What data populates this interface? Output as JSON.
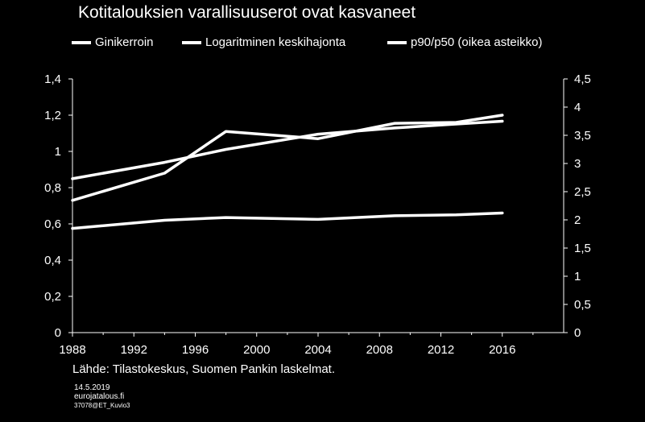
{
  "title": "Kotitalouksien varallisuuserot ovat kasvaneet",
  "source": "Lähde: Tilastokeskus, Suomen Pankin laskelmat.",
  "footer": {
    "date": "14.5.2019",
    "site": "eurojatalous.fi",
    "code": "37078@ET_Kuvio3"
  },
  "colors": {
    "background": "#000000",
    "lines": "#ffffff"
  },
  "chart_data": {
    "type": "line",
    "title": "Kotitalouksien varallisuuserot ovat kasvaneet",
    "x_ticks": [
      "1988",
      "1992",
      "1996",
      "2000",
      "2004",
      "2008",
      "2012",
      "2016"
    ],
    "xlim": [
      1988,
      2020
    ],
    "y_left": {
      "ylim": [
        0,
        1.4
      ],
      "ticks": [
        "0",
        "0,2",
        "0,4",
        "0,6",
        "0,8",
        "1",
        "1,2",
        "1,4"
      ]
    },
    "y_right": {
      "ylim": [
        0,
        4.5
      ],
      "ticks": [
        "0",
        "0,5",
        "1",
        "1,5",
        "2",
        "2,5",
        "3",
        "3,5",
        "4",
        "4,5"
      ]
    },
    "grid": false,
    "legend_position": "top",
    "series": [
      {
        "name": "Ginikerroin",
        "axis": "left",
        "x": [
          1988,
          1994,
          1998,
          2004,
          2009,
          2013,
          2016
        ],
        "y": [
          0.575,
          0.62,
          0.635,
          0.625,
          0.645,
          0.65,
          0.66
        ]
      },
      {
        "name": "Logaritminen keskihajonta",
        "axis": "left",
        "x": [
          1988,
          1994,
          1998,
          2004,
          2009,
          2013,
          2016
        ],
        "y": [
          0.73,
          0.88,
          1.11,
          1.07,
          1.155,
          1.16,
          1.2
        ]
      },
      {
        "name": "p90/p50 (oikea asteikko)",
        "axis": "right",
        "x": [
          1988,
          1994,
          1998,
          2004,
          2009,
          2013,
          2016
        ],
        "y": [
          2.73,
          3.02,
          3.25,
          3.52,
          3.63,
          3.7,
          3.75
        ]
      }
    ]
  }
}
